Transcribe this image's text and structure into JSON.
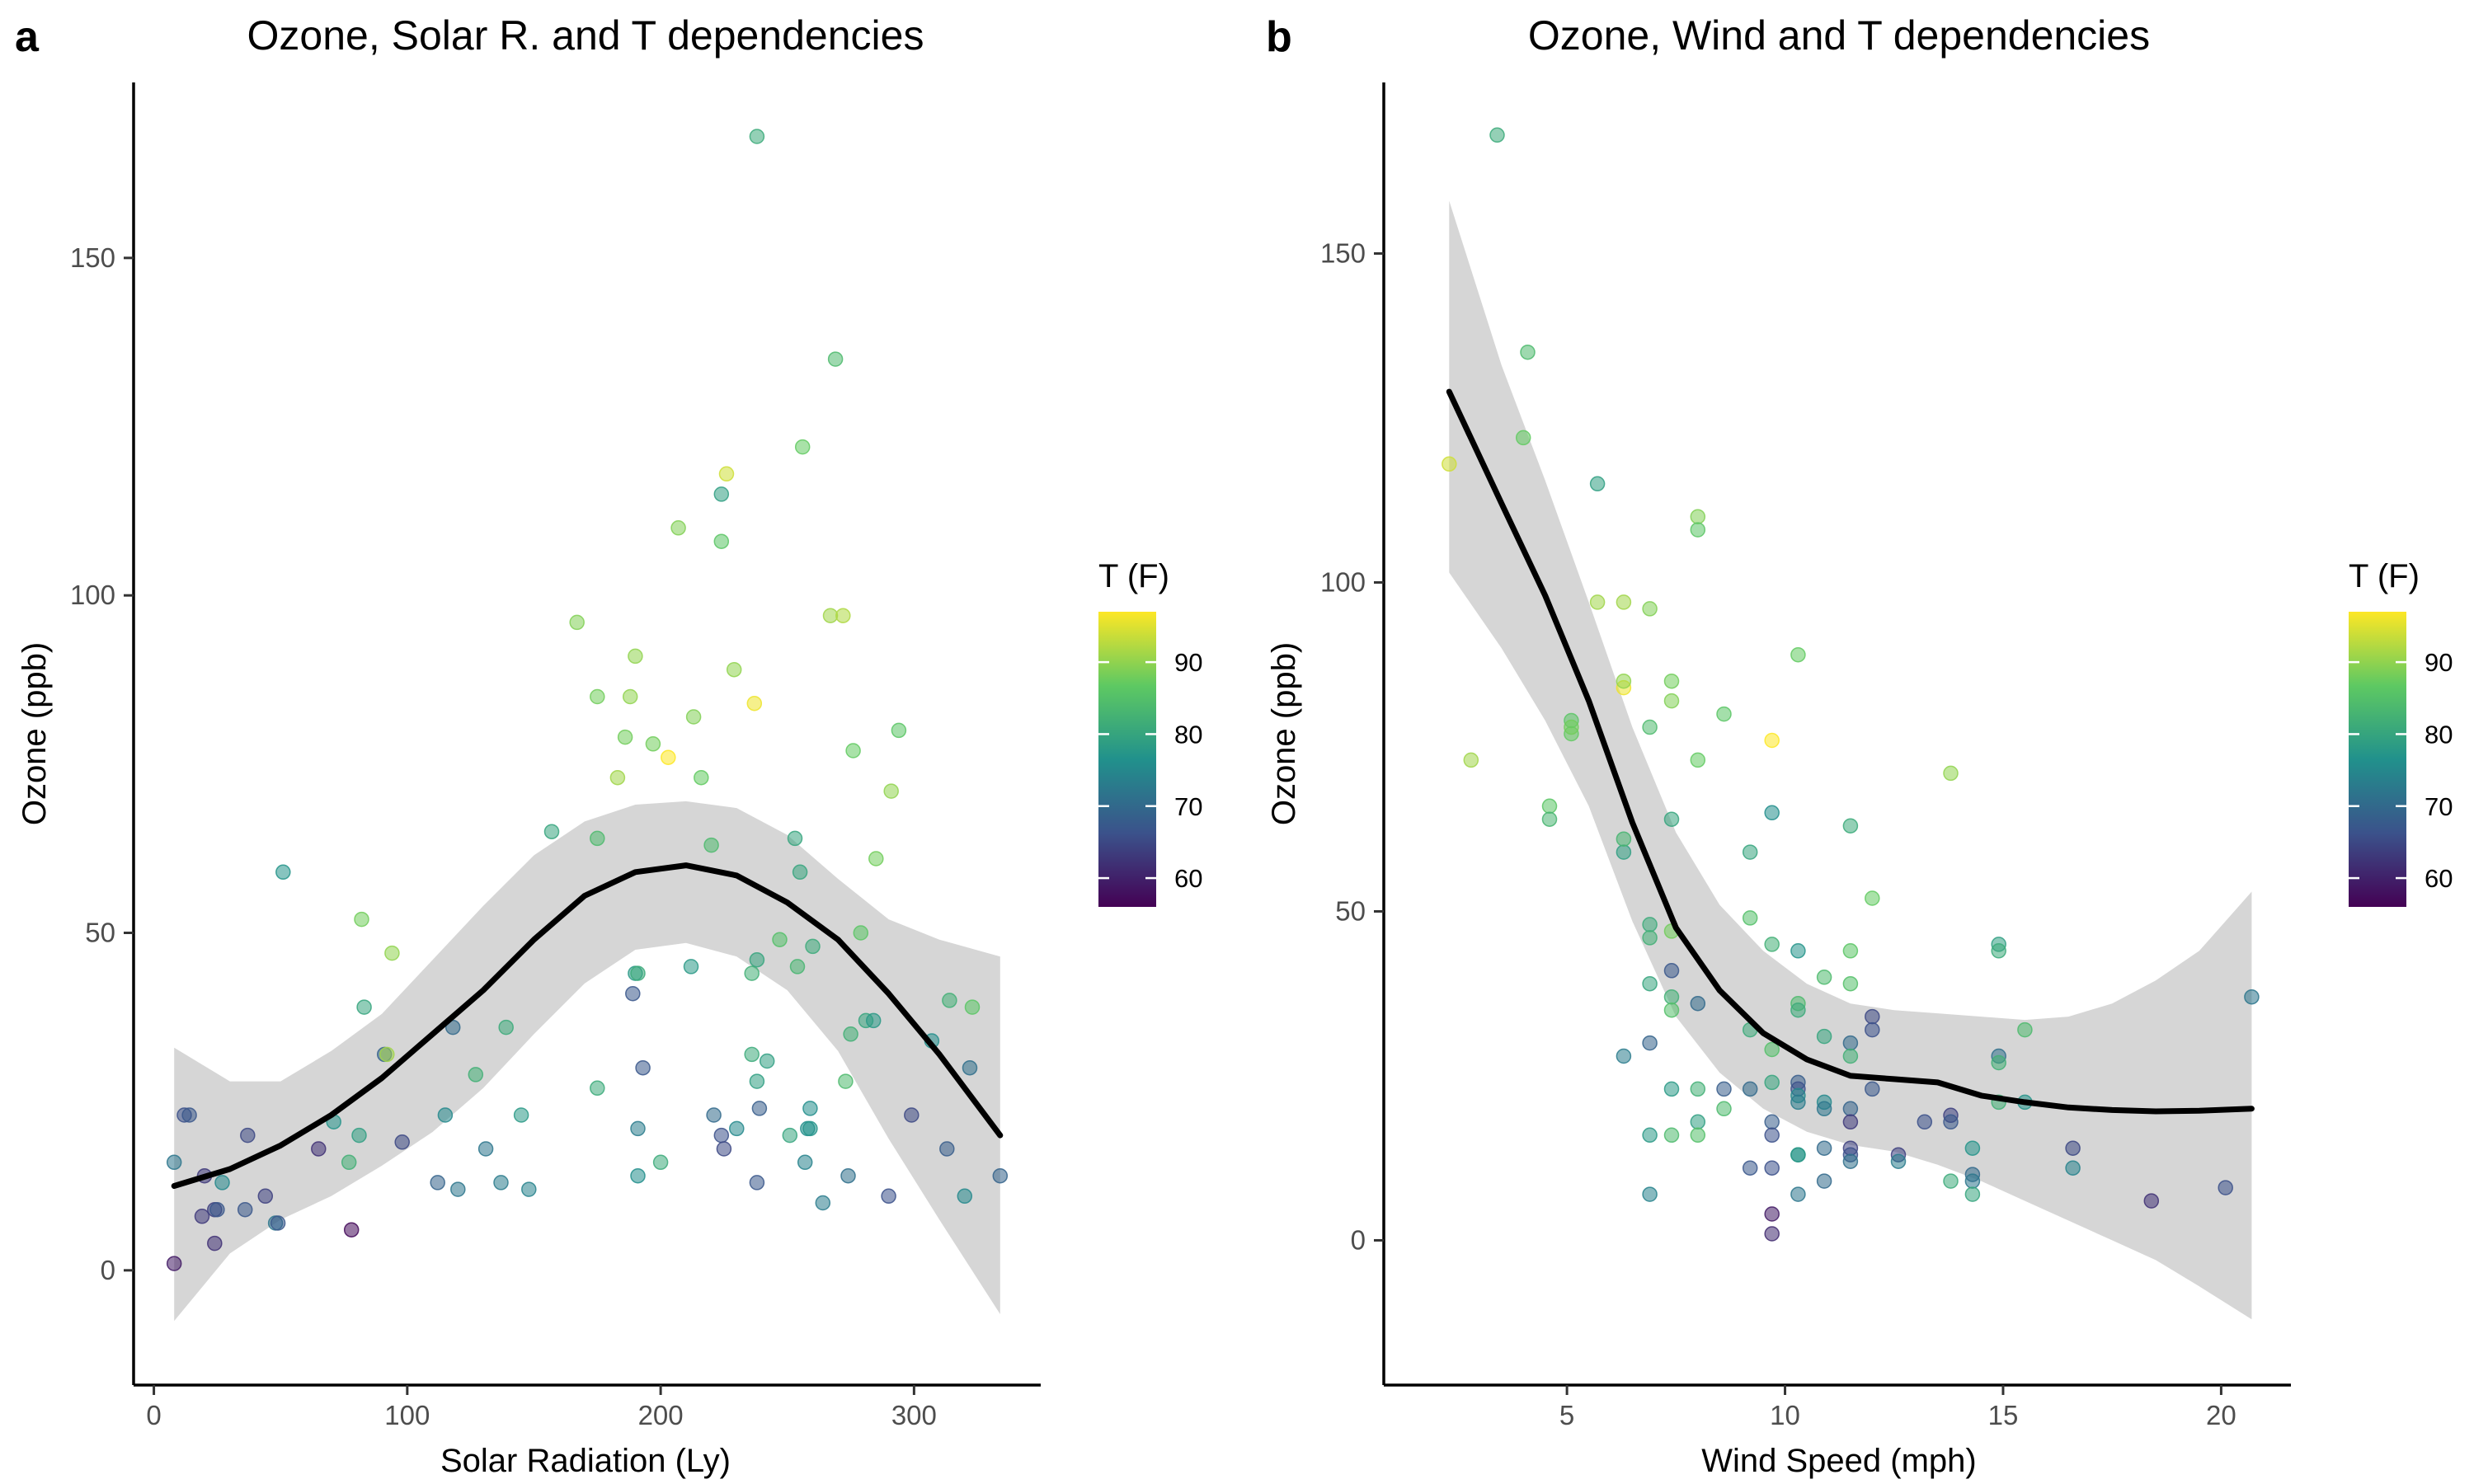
{
  "chart_data": [
    {
      "panel_label": "a",
      "type": "scatter",
      "title": "Ozone, Solar R. and T dependencies",
      "xlabel": "Solar Radiation (Ly)",
      "ylabel": "Ozone (ppb)",
      "xlim": [
        -8,
        350
      ],
      "ylim": [
        -17,
        176
      ],
      "xticks": [
        0,
        100,
        200,
        300
      ],
      "yticks": [
        0,
        50,
        100,
        150
      ],
      "xtick_labels": [
        "0",
        "100",
        "200",
        "300"
      ],
      "ytick_labels": [
        "0",
        "50",
        "100",
        "150"
      ],
      "grid": false,
      "color_scale": {
        "name": "viridis",
        "legend_title": "T (F)",
        "min": 56,
        "max": 97,
        "ticks": [
          60,
          70,
          80,
          90
        ],
        "tick_labels": [
          "60",
          "70",
          "80",
          "90"
        ],
        "colors": [
          "#440154",
          "#3b528b",
          "#21918c",
          "#5ec962",
          "#fde725"
        ]
      },
      "points": [
        [
          8,
          1,
          59
        ],
        [
          8,
          16,
          72
        ],
        [
          12,
          23,
          66
        ],
        [
          14,
          23,
          67
        ],
        [
          19,
          8,
          63
        ],
        [
          20,
          14,
          63
        ],
        [
          24,
          9,
          64
        ],
        [
          24,
          4,
          62
        ],
        [
          25,
          9,
          67
        ],
        [
          27,
          13,
          75
        ],
        [
          36,
          9,
          67
        ],
        [
          37,
          20,
          65
        ],
        [
          44,
          11,
          64
        ],
        [
          48,
          7,
          72
        ],
        [
          49,
          7,
          67
        ],
        [
          51,
          59,
          77
        ],
        [
          65,
          18,
          62
        ],
        [
          71,
          22,
          77
        ],
        [
          77,
          16,
          82
        ],
        [
          78,
          6,
          57
        ],
        [
          81,
          20,
          79
        ],
        [
          82,
          52,
          88
        ],
        [
          83,
          39,
          80
        ],
        [
          91,
          32,
          69
        ],
        [
          92,
          32,
          91
        ],
        [
          94,
          47,
          90
        ],
        [
          98,
          19,
          65
        ],
        [
          112,
          13,
          69
        ],
        [
          115,
          23,
          75
        ],
        [
          118,
          36,
          70
        ],
        [
          120,
          12,
          72
        ],
        [
          127,
          29,
          82
        ],
        [
          131,
          18,
          72
        ],
        [
          137,
          13,
          73
        ],
        [
          139,
          36,
          81
        ],
        [
          145,
          23,
          78
        ],
        [
          148,
          12,
          74
        ],
        [
          157,
          65,
          80
        ],
        [
          167,
          96,
          89
        ],
        [
          175,
          85,
          88
        ],
        [
          175,
          27,
          81
        ],
        [
          175,
          64,
          84
        ],
        [
          183,
          73,
          91
        ],
        [
          186,
          79,
          88
        ],
        [
          188,
          85,
          90
        ],
        [
          189,
          41,
          67
        ],
        [
          190,
          44,
          78
        ],
        [
          190,
          91,
          90
        ],
        [
          191,
          21,
          73
        ],
        [
          191,
          14,
          76
        ],
        [
          191,
          44,
          81
        ],
        [
          193,
          30,
          67
        ],
        [
          197,
          78,
          88
        ],
        [
          200,
          16,
          81
        ],
        [
          203,
          76,
          97
        ],
        [
          207,
          110,
          89
        ],
        [
          212,
          45,
          78
        ],
        [
          213,
          82,
          89
        ],
        [
          216,
          73,
          87
        ],
        [
          220,
          63,
          84
        ],
        [
          221,
          23,
          70
        ],
        [
          224,
          115,
          79
        ],
        [
          224,
          108,
          86
        ],
        [
          224,
          20,
          66
        ],
        [
          225,
          18,
          65
        ],
        [
          226,
          118,
          94
        ],
        [
          229,
          89,
          90
        ],
        [
          230,
          21,
          75
        ],
        [
          236,
          44,
          82
        ],
        [
          236,
          32,
          81
        ],
        [
          237,
          84,
          96
        ],
        [
          238,
          28,
          79
        ],
        [
          238,
          46,
          80
        ],
        [
          238,
          13,
          67
        ],
        [
          239,
          24,
          68
        ],
        [
          242,
          31,
          79
        ],
        [
          247,
          49,
          85
        ],
        [
          251,
          20,
          80
        ],
        [
          253,
          64,
          80
        ],
        [
          254,
          45,
          83
        ],
        [
          255,
          59,
          80
        ],
        [
          256,
          122,
          87
        ],
        [
          257,
          16,
          74
        ],
        [
          258,
          21,
          76
        ],
        [
          259,
          21,
          77
        ],
        [
          259,
          24,
          76
        ],
        [
          260,
          48,
          81
        ],
        [
          264,
          10,
          73
        ],
        [
          267,
          97,
          91
        ],
        [
          269,
          135,
          84
        ],
        [
          272,
          97,
          92
        ],
        [
          273,
          28,
          84
        ],
        [
          274,
          14,
          71
        ],
        [
          275,
          35,
          82
        ],
        [
          276,
          77,
          87
        ],
        [
          279,
          50,
          86
        ],
        [
          281,
          37,
          80
        ],
        [
          284,
          37,
          78
        ],
        [
          285,
          61,
          88
        ],
        [
          290,
          11,
          66
        ],
        [
          291,
          71,
          90
        ],
        [
          294,
          80,
          86
        ],
        [
          299,
          23,
          65
        ],
        [
          307,
          34,
          76
        ],
        [
          313,
          18,
          68
        ],
        [
          314,
          40,
          82
        ],
        [
          320,
          11,
          75
        ],
        [
          322,
          30,
          71
        ],
        [
          323,
          39,
          86
        ],
        [
          334,
          14,
          69
        ],
        [
          238,
          168,
          81
        ]
      ],
      "smooth": {
        "x": [
          8,
          30,
          50,
          70,
          90,
          110,
          130,
          150,
          170,
          190,
          210,
          230,
          250,
          270,
          290,
          310,
          334
        ],
        "y": [
          12.5,
          15,
          18.5,
          23,
          28.5,
          35,
          41.5,
          49,
          55.5,
          59,
          60,
          58.5,
          54.5,
          49,
          41,
          32,
          20
        ],
        "lower": [
          -7.5,
          2.5,
          7.5,
          11,
          15.5,
          20.5,
          27,
          35,
          42.5,
          47.5,
          48.5,
          46.5,
          41.5,
          32.5,
          19.5,
          7.5,
          -6.5
        ],
        "upper": [
          33,
          28,
          28,
          32.5,
          38,
          46,
          54,
          61.5,
          66.5,
          69,
          69.5,
          68.5,
          64.5,
          58,
          52,
          49,
          46.5
        ]
      }
    },
    {
      "panel_label": "b",
      "type": "scatter",
      "title": "Ozone, Wind and T dependencies",
      "xlabel": "Wind Speed (mph)",
      "ylabel": "Ozone (ppb)",
      "xlim": [
        0.8,
        21.6
      ],
      "ylim": [
        -22,
        176
      ],
      "xticks": [
        5,
        10,
        15,
        20
      ],
      "yticks": [
        0,
        50,
        100,
        150
      ],
      "xtick_labels": [
        "5",
        "10",
        "15",
        "20"
      ],
      "ytick_labels": [
        "0",
        "50",
        "100",
        "150"
      ],
      "grid": false,
      "color_scale": {
        "name": "viridis",
        "legend_title": "T (F)",
        "min": 56,
        "max": 97,
        "ticks": [
          60,
          70,
          80,
          90
        ],
        "tick_labels": [
          "60",
          "70",
          "80",
          "90"
        ],
        "colors": [
          "#440154",
          "#3b528b",
          "#21918c",
          "#5ec962",
          "#fde725"
        ]
      },
      "points": [
        [
          2.3,
          118,
          94
        ],
        [
          2.8,
          73,
          91
        ],
        [
          3.4,
          168,
          81
        ],
        [
          4.0,
          122,
          87
        ],
        [
          4.1,
          135,
          84
        ],
        [
          4.6,
          66,
          86
        ],
        [
          4.6,
          64,
          83
        ],
        [
          5.1,
          77,
          87
        ],
        [
          5.1,
          79,
          86
        ],
        [
          5.1,
          78,
          88
        ],
        [
          5.7,
          97,
          91
        ],
        [
          5.7,
          115,
          79
        ],
        [
          6.3,
          97,
          91
        ],
        [
          6.3,
          84,
          96
        ],
        [
          6.3,
          85,
          90
        ],
        [
          6.3,
          59,
          79
        ],
        [
          6.3,
          28,
          73
        ],
        [
          6.3,
          61,
          83
        ],
        [
          6.9,
          96,
          89
        ],
        [
          6.9,
          78,
          84
        ],
        [
          6.9,
          48,
          81
        ],
        [
          6.9,
          39,
          80
        ],
        [
          6.9,
          30,
          69
        ],
        [
          6.9,
          16,
          78
        ],
        [
          6.9,
          7,
          74
        ],
        [
          6.9,
          46,
          82
        ],
        [
          7.4,
          85,
          88
        ],
        [
          7.4,
          82,
          89
        ],
        [
          7.4,
          64,
          80
        ],
        [
          7.4,
          47,
          88
        ],
        [
          7.4,
          41,
          67
        ],
        [
          7.4,
          37,
          82
        ],
        [
          7.4,
          35,
          85
        ],
        [
          7.4,
          23,
          78
        ],
        [
          7.4,
          16,
          84
        ],
        [
          8.0,
          110,
          89
        ],
        [
          8.0,
          108,
          86
        ],
        [
          8.0,
          73,
          87
        ],
        [
          8.0,
          36,
          70
        ],
        [
          8.0,
          23,
          82
        ],
        [
          8.0,
          18,
          79
        ],
        [
          8.0,
          16,
          85
        ],
        [
          8.6,
          80,
          86
        ],
        [
          8.6,
          23,
          68
        ],
        [
          8.6,
          20,
          84
        ],
        [
          9.2,
          59,
          80
        ],
        [
          9.2,
          49,
          85
        ],
        [
          9.2,
          32,
          81
        ],
        [
          9.2,
          23,
          70
        ],
        [
          9.2,
          11,
          67
        ],
        [
          9.7,
          76,
          97
        ],
        [
          9.7,
          65,
          76
        ],
        [
          9.7,
          45,
          82
        ],
        [
          9.7,
          29,
          85
        ],
        [
          9.7,
          24,
          80
        ],
        [
          9.7,
          18,
          68
        ],
        [
          9.7,
          16,
          66
        ],
        [
          9.7,
          11,
          66
        ],
        [
          9.7,
          4,
          59
        ],
        [
          9.7,
          1,
          61
        ],
        [
          10.3,
          89,
          87
        ],
        [
          10.3,
          44,
          77
        ],
        [
          10.3,
          36,
          84
        ],
        [
          10.3,
          35,
          81
        ],
        [
          10.3,
          24,
          68
        ],
        [
          10.3,
          23,
          66
        ],
        [
          10.3,
          22,
          75
        ],
        [
          10.3,
          21,
          73
        ],
        [
          10.3,
          13,
          76
        ],
        [
          10.3,
          13,
          78
        ],
        [
          10.3,
          7,
          72
        ],
        [
          10.9,
          40,
          84
        ],
        [
          10.9,
          31,
          80
        ],
        [
          10.9,
          21,
          75
        ],
        [
          10.9,
          20,
          72
        ],
        [
          10.9,
          14,
          70
        ],
        [
          10.9,
          9,
          70
        ],
        [
          11.5,
          63,
          81
        ],
        [
          11.5,
          44,
          86
        ],
        [
          11.5,
          39,
          85
        ],
        [
          11.5,
          30,
          70
        ],
        [
          11.5,
          28,
          82
        ],
        [
          11.5,
          20,
          69
        ],
        [
          11.5,
          18,
          63
        ],
        [
          11.5,
          14,
          64
        ],
        [
          11.5,
          13,
          66
        ],
        [
          11.5,
          12,
          71
        ],
        [
          12.0,
          52,
          87
        ],
        [
          12.0,
          34,
          65
        ],
        [
          12.0,
          32,
          66
        ],
        [
          12.0,
          23,
          67
        ],
        [
          12.6,
          13,
          64
        ],
        [
          12.6,
          12,
          73
        ],
        [
          13.2,
          18,
          66
        ],
        [
          13.8,
          71,
          90
        ],
        [
          13.8,
          9,
          81
        ],
        [
          13.8,
          19,
          64
        ],
        [
          13.8,
          18,
          67
        ],
        [
          14.3,
          14,
          77
        ],
        [
          14.3,
          10,
          70
        ],
        [
          14.3,
          9,
          72
        ],
        [
          14.3,
          7,
          80
        ],
        [
          14.9,
          45,
          79
        ],
        [
          14.9,
          44,
          81
        ],
        [
          14.9,
          28,
          71
        ],
        [
          14.9,
          27,
          82
        ],
        [
          14.9,
          21,
          82
        ],
        [
          15.5,
          32,
          84
        ],
        [
          15.5,
          21,
          77
        ],
        [
          16.6,
          14,
          65
        ],
        [
          16.6,
          11,
          74
        ],
        [
          18.4,
          6,
          62
        ],
        [
          20.1,
          8,
          66
        ],
        [
          20.7,
          37,
          72
        ]
      ],
      "smooth": {
        "x": [
          2.3,
          3.5,
          4.5,
          5.5,
          6.5,
          7.5,
          8.5,
          9.5,
          10.5,
          11.5,
          12.5,
          13.5,
          14.5,
          15.5,
          16.5,
          17.5,
          18.5,
          19.5,
          20.7
        ],
        "y": [
          129,
          112,
          98,
          82,
          63.5,
          47.5,
          38,
          31.5,
          27.5,
          25,
          24.5,
          24,
          22,
          21,
          20.2,
          19.8,
          19.6,
          19.7,
          20
        ],
        "lower": [
          101.5,
          90,
          79,
          66,
          48.5,
          34,
          25.5,
          20,
          16.5,
          14.5,
          13.5,
          11.5,
          9,
          6,
          3,
          0,
          -3,
          -7,
          -12
        ],
        "upper": [
          158,
          133,
          115.5,
          97,
          78,
          62,
          51,
          44,
          39,
          36,
          35,
          34.5,
          34,
          33.5,
          34,
          36,
          39.5,
          44,
          53
        ]
      }
    }
  ]
}
